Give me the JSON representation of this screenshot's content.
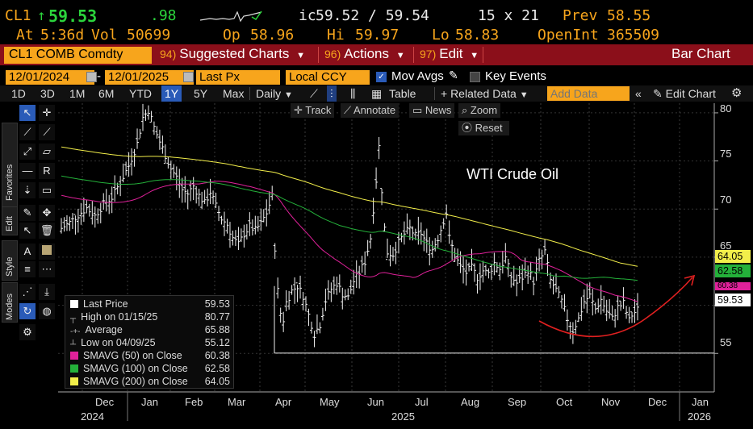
{
  "quote": {
    "ticker": "CL1",
    "arrow": "↑",
    "last": "59.53",
    "change": ".98",
    "bid_ask_prefix": "ic",
    "bid_ask": "59.52 / 59.54",
    "size": "15 x 21",
    "prev_label": "Prev",
    "prev": "58.55",
    "at_label": "At",
    "at_time": "5:36d",
    "vol_label": "Vol",
    "vol": "50699",
    "op_label": "Op",
    "op": "58.96",
    "hi_label": "Hi",
    "hi": "59.97",
    "lo_label": "Lo",
    "lo": "58.83",
    "oi_label": "OpenInt",
    "oi": "365509"
  },
  "menubar": {
    "security": "CL1 COMB Comdty",
    "suggested_num": "94)",
    "suggested": "Suggested Charts",
    "actions_num": "96)",
    "actions": "Actions",
    "edit_num": "97)",
    "edit": "Edit",
    "chart_type": "Bar Chart"
  },
  "settings": {
    "start_date": "12/01/2024",
    "end_date": "12/01/2025",
    "dash": "-",
    "field": "Last Px",
    "currency": "Local CCY",
    "mov_avgs": "Mov Avgs",
    "key_events": "Key Events"
  },
  "toolbar": {
    "ranges": [
      "1D",
      "3D",
      "1M",
      "6M",
      "YTD",
      "1Y",
      "5Y",
      "Max"
    ],
    "active_range": "1Y",
    "period": "Daily",
    "table": "Table",
    "related": "+ Related Data",
    "add_data_placeholder": "Add Data",
    "edit_chart": "Edit Chart"
  },
  "chart_tools": {
    "track": "Track",
    "annotate": "Annotate",
    "news": "News",
    "zoom": "Zoom",
    "reset": "Reset"
  },
  "palette_tabs": {
    "favorites": "Favorites",
    "edit": "Edit",
    "style": "Style",
    "modes": "Modes"
  },
  "legend": [
    {
      "label": "Last Price",
      "value": "59.53",
      "color": "#ffffff",
      "marker": "box"
    },
    {
      "label": "High on 01/15/25",
      "value": "80.77",
      "color": "#bbbbbb",
      "marker": "up"
    },
    {
      "label": "Average",
      "value": "65.88",
      "color": "#bbbbbb",
      "marker": "avg"
    },
    {
      "label": "Low on 04/09/25",
      "value": "55.12",
      "color": "#bbbbbb",
      "marker": "down"
    },
    {
      "label": "SMAVG (50)  on Close",
      "value": "60.38",
      "color": "#e0219a",
      "marker": "box"
    },
    {
      "label": "SMAVG (100)  on Close",
      "value": "62.58",
      "color": "#24b13a",
      "marker": "box"
    },
    {
      "label": "SMAVG (200)  on Close",
      "value": "64.05",
      "color": "#f2ee4a",
      "marker": "box"
    }
  ],
  "annotation": "WTI Crude Oil",
  "y_tags": [
    {
      "value": "64.05",
      "color": "#f2ee4a"
    },
    {
      "value": "62.58",
      "color": "#24b13a"
    },
    {
      "value": "60.38",
      "color": "#e0219a"
    },
    {
      "value": "59.53",
      "color": "#ffffff"
    }
  ],
  "chart_data": {
    "type": "bar",
    "x_axis": {
      "months": [
        "Dec",
        "Jan",
        "Feb",
        "Mar",
        "Apr",
        "May",
        "Jun",
        "Jul",
        "Aug",
        "Sep",
        "Oct",
        "Nov",
        "Dec",
        "Jan"
      ],
      "years": [
        "2024",
        "2025",
        "2026"
      ]
    },
    "y_axis": {
      "ticks": [
        "80",
        "75",
        "70",
        "65",
        "60",
        "55"
      ],
      "range": [
        51,
        81
      ]
    },
    "ohlc_close": [
      [
        0,
        68.0
      ],
      [
        3,
        68.6
      ],
      [
        6,
        69.4
      ],
      [
        9,
        70.1
      ],
      [
        12,
        69.3
      ],
      [
        15,
        70.5
      ],
      [
        18,
        71.2
      ],
      [
        21,
        72.8
      ],
      [
        24,
        74.5
      ],
      [
        27,
        76.8
      ],
      [
        29,
        79.5
      ],
      [
        31,
        80.3
      ],
      [
        33,
        78.5
      ],
      [
        35,
        77.0
      ],
      [
        37,
        75.6
      ],
      [
        39,
        74.2
      ],
      [
        41,
        73.3
      ],
      [
        43,
        72.0
      ],
      [
        45,
        71.6
      ],
      [
        47,
        72.4
      ],
      [
        49,
        71.4
      ],
      [
        51,
        70.6
      ],
      [
        53,
        71.8
      ],
      [
        55,
        70.3
      ],
      [
        57,
        69.0
      ],
      [
        59,
        68.4
      ],
      [
        61,
        67.0
      ],
      [
        63,
        66.3
      ],
      [
        65,
        67.4
      ],
      [
        67,
        68.2
      ],
      [
        69,
        67.8
      ],
      [
        71,
        68.5
      ],
      [
        73,
        69.6
      ],
      [
        75,
        71.3
      ],
      [
        76,
        66.0
      ],
      [
        77,
        61.5
      ],
      [
        78,
        59.2
      ],
      [
        79,
        58.5
      ],
      [
        80,
        60.3
      ],
      [
        82,
        61.5
      ],
      [
        84,
        62.0
      ],
      [
        86,
        61.0
      ],
      [
        88,
        59.0
      ],
      [
        90,
        57.0
      ],
      [
        92,
        58.0
      ],
      [
        94,
        60.5
      ],
      [
        96,
        61.7
      ],
      [
        98,
        62.3
      ],
      [
        100,
        61.2
      ],
      [
        102,
        60.8
      ],
      [
        104,
        62.5
      ],
      [
        106,
        63.4
      ],
      [
        108,
        64.5
      ],
      [
        110,
        67.0
      ],
      [
        112,
        73.0
      ],
      [
        113,
        76.5
      ],
      [
        114,
        72.0
      ],
      [
        115,
        68.0
      ],
      [
        116,
        65.5
      ],
      [
        118,
        65.3
      ],
      [
        120,
        66.5
      ],
      [
        122,
        67.4
      ],
      [
        124,
        68.0
      ],
      [
        126,
        67.2
      ],
      [
        128,
        67.5
      ],
      [
        130,
        66.4
      ],
      [
        132,
        65.8
      ],
      [
        134,
        67.0
      ],
      [
        136,
        68.8
      ],
      [
        137,
        69.6
      ],
      [
        138,
        67.0
      ],
      [
        140,
        65.2
      ],
      [
        142,
        64.0
      ],
      [
        144,
        63.4
      ],
      [
        146,
        63.9
      ],
      [
        148,
        62.9
      ],
      [
        150,
        63.6
      ],
      [
        152,
        63.3
      ],
      [
        154,
        64.4
      ],
      [
        156,
        63.8
      ],
      [
        158,
        64.9
      ],
      [
        160,
        63.0
      ],
      [
        162,
        62.3
      ],
      [
        164,
        62.9
      ],
      [
        166,
        63.7
      ],
      [
        168,
        62.5
      ],
      [
        170,
        64.6
      ],
      [
        172,
        65.6
      ],
      [
        174,
        62.6
      ],
      [
        176,
        61.6
      ],
      [
        178,
        60.4
      ],
      [
        180,
        58.6
      ],
      [
        182,
        57.4
      ],
      [
        184,
        58.6
      ],
      [
        186,
        60.4
      ],
      [
        188,
        61.0
      ],
      [
        190,
        59.6
      ],
      [
        192,
        60.6
      ],
      [
        194,
        59.4
      ],
      [
        196,
        58.6
      ],
      [
        198,
        59.8
      ],
      [
        200,
        60.2
      ],
      [
        202,
        58.4
      ],
      [
        203,
        59.0
      ],
      [
        205,
        59.53
      ]
    ],
    "series": [
      {
        "name": "Last Price",
        "color": "#ffffff"
      },
      {
        "name": "SMAVG (50) on Close",
        "color": "#e0219a",
        "last": 60.38
      },
      {
        "name": "SMAVG (100) on Close",
        "color": "#24b13a",
        "last": 62.58
      },
      {
        "name": "SMAVG (200) on Close",
        "color": "#f2ee4a",
        "last": 64.05
      }
    ],
    "high": {
      "date": "01/15/25",
      "value": 80.77
    },
    "low": {
      "date": "04/09/25",
      "value": 55.12
    },
    "average": 65.88,
    "grid": true,
    "legend_position": "bottom-left"
  }
}
